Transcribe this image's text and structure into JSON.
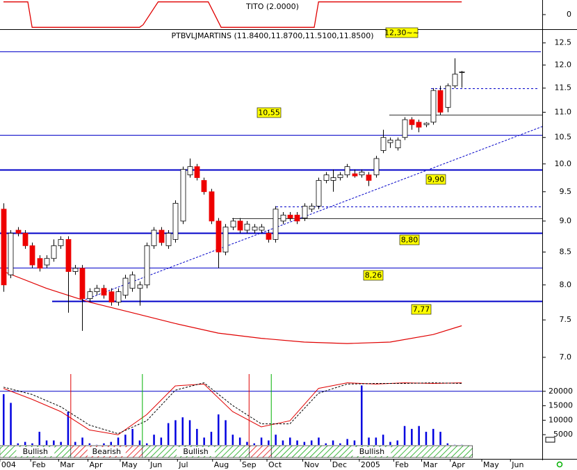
{
  "chart_data": [
    {
      "type": "line",
      "title": "TITO (2.0000)",
      "x": [
        0,
        3.4,
        4,
        19,
        19.5,
        21.6,
        28.6,
        30.4,
        43.4,
        44,
        64
      ],
      "values": [
        1,
        1,
        -1,
        -1,
        -0.8,
        1,
        1,
        -1,
        -1,
        1,
        1
      ],
      "color": "#e00000",
      "ylim": [
        -1.15,
        1.15
      ],
      "yticks": [
        0
      ]
    },
    {
      "type": "candlestick",
      "title": "PTBVLJMARTINS (11.8400,11.8700,11.5100,11.8500)",
      "open": [
        9.2,
        8.15,
        8.85,
        8.8,
        8.6,
        8.4,
        8.3,
        8.4,
        8.6,
        8.7,
        8.2,
        8.25,
        7.8,
        7.9,
        7.95,
        7.9,
        7.75,
        7.85,
        7.95,
        7.95,
        8.0,
        8.6,
        8.85,
        8.6,
        8.7,
        9.0,
        9.8,
        9.95,
        9.7,
        9.5,
        9.0,
        8.5,
        8.9,
        9.0,
        8.85,
        8.85,
        8.85,
        8.8,
        8.7,
        9.0,
        9.1,
        9.1,
        9.05,
        9.2,
        9.25,
        9.7,
        9.7,
        9.75,
        9.8,
        9.82,
        9.8,
        9.8,
        9.8,
        10.25,
        10.4,
        10.3,
        10.5,
        10.85,
        10.8,
        10.75,
        10.8,
        11.45,
        11.1,
        11.55,
        11.84
      ],
      "high": [
        9.3,
        8.85,
        8.9,
        8.85,
        8.65,
        8.45,
        8.45,
        8.7,
        8.75,
        8.75,
        8.3,
        8.3,
        7.95,
        8.0,
        8.0,
        7.95,
        7.95,
        8.15,
        8.2,
        8.05,
        8.65,
        8.9,
        8.9,
        8.85,
        9.35,
        9.95,
        10.1,
        10.0,
        9.75,
        9.55,
        9.05,
        8.95,
        9.05,
        9.05,
        9.0,
        8.95,
        8.95,
        8.85,
        9.25,
        9.15,
        9.15,
        9.15,
        9.3,
        9.3,
        9.75,
        9.85,
        9.9,
        9.85,
        10.0,
        9.9,
        9.9,
        9.85,
        10.15,
        10.65,
        10.5,
        10.5,
        10.9,
        10.9,
        10.85,
        10.8,
        11.5,
        11.55,
        11.6,
        12.15,
        11.87
      ],
      "low": [
        7.9,
        8.1,
        8.75,
        8.55,
        8.25,
        8.2,
        8.25,
        8.35,
        8.55,
        7.6,
        8.15,
        7.35,
        7.75,
        7.85,
        7.8,
        7.7,
        7.7,
        7.8,
        7.9,
        7.7,
        7.95,
        8.55,
        8.6,
        8.55,
        8.65,
        8.95,
        9.75,
        9.7,
        9.45,
        8.95,
        8.25,
        8.45,
        8.85,
        8.8,
        8.8,
        8.8,
        8.8,
        8.65,
        8.65,
        8.95,
        9.0,
        8.95,
        9.0,
        9.15,
        9.2,
        9.65,
        9.5,
        9.7,
        9.75,
        9.75,
        9.75,
        9.6,
        9.75,
        10.2,
        10.3,
        10.25,
        10.45,
        10.65,
        10.6,
        10.7,
        10.75,
        10.95,
        11.0,
        11.5,
        11.51
      ],
      "close": [
        8.0,
        8.8,
        8.8,
        8.6,
        8.3,
        8.25,
        8.4,
        8.6,
        8.7,
        8.2,
        8.25,
        7.8,
        7.9,
        7.95,
        7.85,
        7.75,
        7.9,
        8.1,
        8.15,
        8.0,
        8.6,
        8.85,
        8.65,
        8.8,
        9.3,
        9.9,
        9.95,
        9.75,
        9.5,
        9.0,
        8.5,
        8.9,
        9.0,
        8.85,
        8.95,
        8.9,
        8.9,
        8.7,
        9.2,
        9.1,
        9.05,
        9.0,
        9.25,
        9.25,
        9.7,
        9.8,
        9.75,
        9.8,
        9.95,
        9.78,
        9.85,
        9.7,
        10.1,
        10.5,
        10.45,
        10.45,
        10.85,
        10.75,
        10.7,
        10.78,
        11.45,
        11.0,
        11.55,
        11.8,
        11.85
      ],
      "up_color": "#ffffff",
      "down_color": "#ee0000",
      "log_scale": true,
      "ylim": [
        6.77,
        12.82
      ],
      "yticks": [
        {
          "value": 7,
          "label": "7.0"
        },
        7.5,
        {
          "value": 8,
          "label": "8.0"
        },
        8.5,
        {
          "value": 9,
          "label": "9.0"
        },
        9.5,
        {
          "value": 10,
          "label": "10.0"
        },
        10.5,
        {
          "value": 11,
          "label": "11.0"
        },
        11.5,
        {
          "value": 12,
          "label": "12.0"
        },
        12.5
      ],
      "levels": [
        {
          "value": 12.3,
          "label": "12,30~~"
        },
        {
          "value": 11.5,
          "dashed": true
        },
        {
          "value": 10.95
        },
        {
          "value": 10.55,
          "label": "10,55"
        },
        {
          "value": 9.9,
          "label": "9,90",
          "thick": true
        },
        {
          "value": 9.25,
          "dashed": true
        },
        {
          "value": 9.05
        },
        {
          "value": 8.8,
          "label": "8,80",
          "thick": true
        },
        {
          "value": 8.26,
          "label": "8,26"
        },
        {
          "value": 7.77,
          "label": "7,77",
          "thick": true
        }
      ],
      "level_color": "#0000c8",
      "moving_average": {
        "x": [
          0,
          6,
          12,
          18,
          24,
          30,
          36,
          42,
          48,
          54,
          60,
          64
        ],
        "values": [
          8.2,
          7.95,
          7.75,
          7.6,
          7.45,
          7.32,
          7.25,
          7.2,
          7.18,
          7.2,
          7.3,
          7.42
        ],
        "color": "#e00000"
      },
      "trendline": {
        "x": [
          11,
          77.8
        ],
        "values": [
          7.77,
          10.85
        ],
        "color": "#0000c8"
      }
    },
    {
      "type": "bar",
      "color": "#0000e0",
      "values": [
        19000,
        16000,
        2000,
        2500,
        2000,
        6000,
        3000,
        3000,
        2500,
        13000,
        2500,
        4000,
        2000,
        1500,
        2000,
        2500,
        4000,
        5000,
        7000,
        3000,
        2000,
        5000,
        4000,
        9000,
        10000,
        11000,
        10000,
        7000,
        4000,
        6000,
        12000,
        10000,
        5000,
        4000,
        2500,
        2000,
        4000,
        3000,
        5000,
        3000,
        4000,
        3000,
        2500,
        3000,
        4000,
        2000,
        3000,
        2000,
        3500,
        3000,
        22000,
        4000,
        4000,
        5000,
        2500,
        3000,
        8000,
        7000,
        8000,
        6000,
        7000,
        6000,
        2000,
        1500,
        1500
      ],
      "ylim": [
        0,
        25000
      ],
      "yticks": [
        5000,
        10000,
        15000,
        20000
      ],
      "hline": 20000,
      "oscillator": {
        "x": [
          0,
          4,
          8,
          12,
          16,
          20,
          24,
          28,
          32,
          36,
          40,
          44,
          48,
          52,
          56,
          60,
          64
        ],
        "ylim": [
          0,
          100
        ],
        "series": [
          {
            "color": "#e00000",
            "values": [
              88,
              70,
              50,
              20,
              12,
              45,
              92,
              95,
              50,
              25,
              35,
              88,
              97,
              95,
              97,
              96,
              97
            ]
          },
          {
            "color": "#000000",
            "dashed": true,
            "values": [
              90,
              78,
              58,
              28,
              14,
              35,
              85,
              97,
              60,
              30,
              30,
              80,
              95,
              96,
              96,
              97,
              96
            ]
          }
        ]
      }
    },
    {
      "type": "band",
      "segments": [
        {
          "label": "Bullish",
          "start": -0.5,
          "end": 9.4,
          "signal": "bullish"
        },
        {
          "label": "Bearish",
          "start": 9.4,
          "end": 19.4,
          "signal": "bearish"
        },
        {
          "label": "Bullish",
          "start": 19.4,
          "end": 34.3,
          "signal": "bullish"
        },
        {
          "start": 34.3,
          "end": 37.4,
          "signal": "bearish"
        },
        {
          "label": "Bullish",
          "start": 37.4,
          "end": 65.5,
          "signal": "bullish"
        }
      ],
      "signal_colors": {
        "bullish": "#00b000",
        "bearish": "#e00000"
      },
      "xticks": [
        {
          "value": -0.5,
          "label": "004"
        },
        {
          "value": 3.8,
          "label": "Feb"
        },
        {
          "value": 7.7,
          "label": "Mar"
        },
        {
          "value": 11.8,
          "label": "Apr"
        },
        {
          "value": 16.3,
          "label": "May"
        },
        {
          "value": 20.3,
          "label": "Jun"
        },
        {
          "value": 24.3,
          "label": "Jul"
        },
        {
          "value": 29.2,
          "label": "Aug"
        },
        {
          "value": 33.1,
          "label": "Sep"
        },
        {
          "value": 36.8,
          "label": "Oct"
        },
        {
          "value": 41.8,
          "label": "Nov"
        },
        {
          "value": 45.7,
          "label": "Dec"
        },
        {
          "value": 49.7,
          "label": "2005"
        },
        {
          "value": 54.5,
          "label": "Feb"
        },
        {
          "value": 58.4,
          "label": "Mar"
        },
        {
          "value": 62.4,
          "label": "Apr"
        },
        {
          "value": 66.8,
          "label": "May"
        },
        {
          "value": 70.8,
          "label": "Jun"
        }
      ]
    }
  ]
}
